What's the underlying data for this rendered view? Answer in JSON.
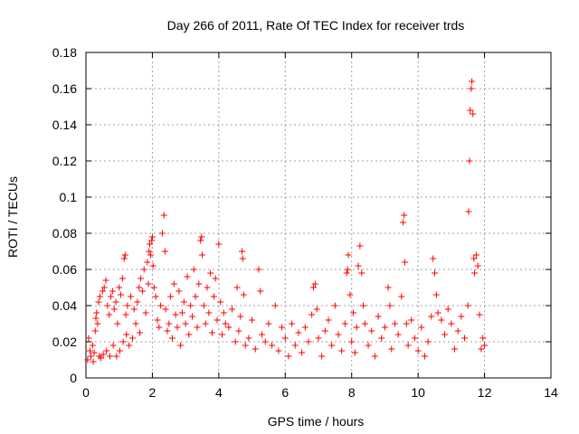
{
  "chart_data": {
    "type": "scatter",
    "title": "Day 266 of 2011, Rate Of TEC Index for receiver trds",
    "xlabel": "GPS time / hours",
    "ylabel": "ROTI / TECUs",
    "xlim": [
      0,
      14
    ],
    "ylim": [
      0,
      0.18
    ],
    "x_ticks": [
      "0",
      "2",
      "4",
      "6",
      "8",
      "10",
      "12",
      "14"
    ],
    "y_ticks": [
      "0",
      "0.02",
      "0.04",
      "0.06",
      "0.08",
      "0.1",
      "0.12",
      "0.14",
      "0.16",
      "0.18"
    ],
    "grid": true,
    "marker": "+",
    "series": [
      {
        "color": "#ff0000",
        "points": [
          [
            0.05,
            0.01
          ],
          [
            0.08,
            0.022
          ],
          [
            0.12,
            0.015
          ],
          [
            0.15,
            0.012
          ],
          [
            0.2,
            0.018
          ],
          [
            0.22,
            0.009
          ],
          [
            0.25,
            0.014
          ],
          [
            0.28,
            0.026
          ],
          [
            0.3,
            0.033
          ],
          [
            0.32,
            0.036
          ],
          [
            0.35,
            0.03
          ],
          [
            0.38,
            0.042
          ],
          [
            0.4,
            0.012
          ],
          [
            0.42,
            0.045
          ],
          [
            0.45,
            0.011
          ],
          [
            0.5,
            0.048
          ],
          [
            0.52,
            0.013
          ],
          [
            0.55,
            0.05
          ],
          [
            0.6,
            0.054
          ],
          [
            0.62,
            0.015
          ],
          [
            0.65,
            0.04
          ],
          [
            0.7,
            0.035
          ],
          [
            0.72,
            0.012
          ],
          [
            0.75,
            0.045
          ],
          [
            0.8,
            0.048
          ],
          [
            0.82,
            0.018
          ],
          [
            0.85,
            0.038
          ],
          [
            0.9,
            0.042
          ],
          [
            0.92,
            0.012
          ],
          [
            0.95,
            0.03
          ],
          [
            1.0,
            0.05
          ],
          [
            1.02,
            0.015
          ],
          [
            1.05,
            0.046
          ],
          [
            1.1,
            0.055
          ],
          [
            1.12,
            0.02
          ],
          [
            1.15,
            0.066
          ],
          [
            1.18,
            0.068
          ],
          [
            1.2,
            0.035
          ],
          [
            1.22,
            0.024
          ],
          [
            1.25,
            0.04
          ],
          [
            1.3,
            0.018
          ],
          [
            1.35,
            0.045
          ],
          [
            1.4,
            0.022
          ],
          [
            1.45,
            0.038
          ],
          [
            1.5,
            0.03
          ],
          [
            1.55,
            0.042
          ],
          [
            1.6,
            0.05
          ],
          [
            1.62,
            0.025
          ],
          [
            1.65,
            0.055
          ],
          [
            1.7,
            0.048
          ],
          [
            1.75,
            0.06
          ],
          [
            1.8,
            0.036
          ],
          [
            1.85,
            0.064
          ],
          [
            1.88,
            0.052
          ],
          [
            1.9,
            0.07
          ],
          [
            1.92,
            0.074
          ],
          [
            1.95,
            0.068
          ],
          [
            1.98,
            0.076
          ],
          [
            2.0,
            0.078
          ],
          [
            2.02,
            0.062
          ],
          [
            2.05,
            0.05
          ],
          [
            2.1,
            0.045
          ],
          [
            2.15,
            0.032
          ],
          [
            2.2,
            0.028
          ],
          [
            2.25,
            0.04
          ],
          [
            2.3,
            0.08
          ],
          [
            2.35,
            0.09
          ],
          [
            2.38,
            0.07
          ],
          [
            2.4,
            0.038
          ],
          [
            2.45,
            0.026
          ],
          [
            2.5,
            0.03
          ],
          [
            2.55,
            0.045
          ],
          [
            2.6,
            0.022
          ],
          [
            2.65,
            0.052
          ],
          [
            2.7,
            0.035
          ],
          [
            2.75,
            0.028
          ],
          [
            2.8,
            0.048
          ],
          [
            2.85,
            0.018
          ],
          [
            2.9,
            0.036
          ],
          [
            2.95,
            0.042
          ],
          [
            3.0,
            0.03
          ],
          [
            3.05,
            0.056
          ],
          [
            3.1,
            0.024
          ],
          [
            3.15,
            0.04
          ],
          [
            3.2,
            0.034
          ],
          [
            3.25,
            0.06
          ],
          [
            3.3,
            0.045
          ],
          [
            3.35,
            0.028
          ],
          [
            3.4,
            0.052
          ],
          [
            3.45,
            0.076
          ],
          [
            3.48,
            0.078
          ],
          [
            3.5,
            0.068
          ],
          [
            3.55,
            0.04
          ],
          [
            3.6,
            0.03
          ],
          [
            3.65,
            0.05
          ],
          [
            3.7,
            0.036
          ],
          [
            3.75,
            0.058
          ],
          [
            3.8,
            0.025
          ],
          [
            3.85,
            0.045
          ],
          [
            3.9,
            0.055
          ],
          [
            3.95,
            0.032
          ],
          [
            4.0,
            0.074
          ],
          [
            4.05,
            0.042
          ],
          [
            4.1,
            0.024
          ],
          [
            4.15,
            0.036
          ],
          [
            4.2,
            0.03
          ],
          [
            4.3,
            0.028
          ],
          [
            4.4,
            0.038
          ],
          [
            4.5,
            0.02
          ],
          [
            4.55,
            0.05
          ],
          [
            4.6,
            0.026
          ],
          [
            4.65,
            0.034
          ],
          [
            4.7,
            0.07
          ],
          [
            4.72,
            0.066
          ],
          [
            4.75,
            0.046
          ],
          [
            4.8,
            0.018
          ],
          [
            4.9,
            0.022
          ],
          [
            5.0,
            0.032
          ],
          [
            5.1,
            0.016
          ],
          [
            5.2,
            0.06
          ],
          [
            5.25,
            0.048
          ],
          [
            5.3,
            0.024
          ],
          [
            5.4,
            0.02
          ],
          [
            5.5,
            0.03
          ],
          [
            5.6,
            0.018
          ],
          [
            5.7,
            0.04
          ],
          [
            5.8,
            0.015
          ],
          [
            5.9,
            0.028
          ],
          [
            6.0,
            0.022
          ],
          [
            6.1,
            0.012
          ],
          [
            6.2,
            0.03
          ],
          [
            6.3,
            0.018
          ],
          [
            6.4,
            0.025
          ],
          [
            6.5,
            0.014
          ],
          [
            6.6,
            0.028
          ],
          [
            6.7,
            0.02
          ],
          [
            6.8,
            0.035
          ],
          [
            6.85,
            0.05
          ],
          [
            6.9,
            0.052
          ],
          [
            6.95,
            0.038
          ],
          [
            7.0,
            0.022
          ],
          [
            7.1,
            0.012
          ],
          [
            7.2,
            0.026
          ],
          [
            7.3,
            0.032
          ],
          [
            7.4,
            0.018
          ],
          [
            7.5,
            0.04
          ],
          [
            7.6,
            0.024
          ],
          [
            7.7,
            0.015
          ],
          [
            7.8,
            0.03
          ],
          [
            7.85,
            0.058
          ],
          [
            7.88,
            0.06
          ],
          [
            7.9,
            0.068
          ],
          [
            7.95,
            0.046
          ],
          [
            8.0,
            0.02
          ],
          [
            8.05,
            0.036
          ],
          [
            8.1,
            0.014
          ],
          [
            8.15,
            0.028
          ],
          [
            8.2,
            0.062
          ],
          [
            8.25,
            0.073
          ],
          [
            8.3,
            0.058
          ],
          [
            8.35,
            0.04
          ],
          [
            8.4,
            0.03
          ],
          [
            8.5,
            0.018
          ],
          [
            8.6,
            0.026
          ],
          [
            8.7,
            0.012
          ],
          [
            8.8,
            0.034
          ],
          [
            8.9,
            0.022
          ],
          [
            9.0,
            0.028
          ],
          [
            9.1,
            0.05
          ],
          [
            9.15,
            0.04
          ],
          [
            9.2,
            0.016
          ],
          [
            9.3,
            0.03
          ],
          [
            9.4,
            0.024
          ],
          [
            9.5,
            0.045
          ],
          [
            9.55,
            0.086
          ],
          [
            9.58,
            0.09
          ],
          [
            9.6,
            0.064
          ],
          [
            9.65,
            0.03
          ],
          [
            9.7,
            0.018
          ],
          [
            9.8,
            0.032
          ],
          [
            9.9,
            0.022
          ],
          [
            10.0,
            0.015
          ],
          [
            10.1,
            0.028
          ],
          [
            10.2,
            0.012
          ],
          [
            10.3,
            0.02
          ],
          [
            10.4,
            0.034
          ],
          [
            10.45,
            0.066
          ],
          [
            10.5,
            0.058
          ],
          [
            10.55,
            0.046
          ],
          [
            10.6,
            0.036
          ],
          [
            10.7,
            0.032
          ],
          [
            10.8,
            0.024
          ],
          [
            10.9,
            0.038
          ],
          [
            11.0,
            0.03
          ],
          [
            11.1,
            0.016
          ],
          [
            11.2,
            0.026
          ],
          [
            11.3,
            0.034
          ],
          [
            11.4,
            0.022
          ],
          [
            11.5,
            0.04
          ],
          [
            11.52,
            0.092
          ],
          [
            11.55,
            0.12
          ],
          [
            11.57,
            0.148
          ],
          [
            11.6,
            0.16
          ],
          [
            11.62,
            0.164
          ],
          [
            11.65,
            0.146
          ],
          [
            11.68,
            0.066
          ],
          [
            11.7,
            0.058
          ],
          [
            11.75,
            0.068
          ],
          [
            11.8,
            0.062
          ],
          [
            11.85,
            0.035
          ],
          [
            11.9,
            0.016
          ],
          [
            11.95,
            0.022
          ],
          [
            12.0,
            0.018
          ]
        ]
      }
    ]
  }
}
